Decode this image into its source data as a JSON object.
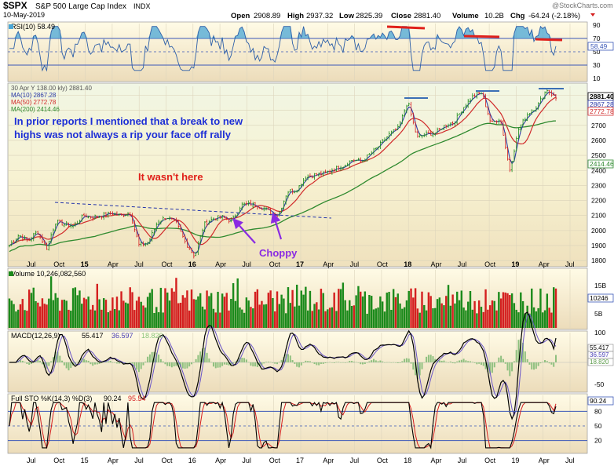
{
  "header": {
    "symbol": "$SPX",
    "name": "S&P 500 Large Cap Index",
    "exchange": "INDX",
    "date": "10-May-2019",
    "open_label": "Open",
    "open": "2908.89",
    "high_label": "High",
    "high": "2937.32",
    "low_label": "Low",
    "low": "2825.39",
    "close_label": "Close",
    "close": "2881.40",
    "volume_label": "Volume",
    "volume": "10.2B",
    "chg_label": "Chg",
    "chg": "-64.24 (-2.18%)",
    "watermark": "@StockCharts.com"
  },
  "colors": {
    "panel_bg_top": "#fffbe4",
    "panel_bg_bottom": "#eedfc0",
    "price_bg_top": "#f2f7e6",
    "up": "#1b8a1b",
    "down": "#d41f1f",
    "ma10": "#2b3aa8",
    "ma50": "#d12a2a",
    "ma200": "#2f8a2f",
    "annot_blue": "#1d2fd6",
    "annot_red": "#e0201a",
    "annot_purple": "#8a2be2",
    "rsi_fill": "#4aa6d6"
  },
  "chart_data": [
    {
      "type": "line",
      "panel": "rsi",
      "title": "RSI(10) 58.49",
      "last_value": "58.49",
      "ylim": [
        10,
        90
      ],
      "y_ticks": [
        "90",
        "70",
        "50",
        "30",
        "10"
      ],
      "reference_lines": [
        70,
        30
      ]
    },
    {
      "type": "candlestick",
      "panel": "price",
      "title": "30 Apr Y 138.00 kly) 2881.40",
      "ylim": [
        1780,
        2960
      ],
      "y_ticks": [
        "1800",
        "1900",
        "2000",
        "2100",
        "2200",
        "2300",
        "2400",
        "2500",
        "2600",
        "2700",
        "2800",
        "2900"
      ],
      "right_labels": [
        "2881.40",
        "2867.28",
        "2772.78",
        "2414.46"
      ],
      "series": [
        {
          "name": "MA(10) 2867.28",
          "last": 2867.28
        },
        {
          "name": "MA(50) 2772.78",
          "last": 2772.78
        },
        {
          "name": "MA(200) 2414.46",
          "last": 2414.46
        }
      ],
      "price_path": [
        [
          "2014-06",
          1900
        ],
        [
          "2014-07",
          1970
        ],
        [
          "2014-08",
          1930
        ],
        [
          "2014-09",
          1995
        ],
        [
          "2014-10",
          1880
        ],
        [
          "2014-11",
          2060
        ],
        [
          "2014-12",
          2040
        ],
        [
          "2015-01",
          2030
        ],
        [
          "2015-02",
          2100
        ],
        [
          "2015-03",
          2090
        ],
        [
          "2015-04",
          2100
        ],
        [
          "2015-05",
          2115
        ],
        [
          "2015-06",
          2100
        ],
        [
          "2015-07",
          2120
        ],
        [
          "2015-08",
          1900
        ],
        [
          "2015-09",
          1920
        ],
        [
          "2015-10",
          2060
        ],
        [
          "2015-11",
          2090
        ],
        [
          "2015-12",
          2050
        ],
        [
          "2016-01",
          1920
        ],
        [
          "2016-02",
          1830
        ],
        [
          "2016-03",
          2040
        ],
        [
          "2016-04",
          2080
        ],
        [
          "2016-05",
          2090
        ],
        [
          "2016-06",
          2060
        ],
        [
          "2016-07",
          2170
        ],
        [
          "2016-08",
          2175
        ],
        [
          "2016-09",
          2160
        ],
        [
          "2016-10",
          2130
        ],
        [
          "2016-11",
          2100
        ],
        [
          "2016-12",
          2260
        ],
        [
          "2017-01",
          2270
        ],
        [
          "2017-02",
          2360
        ],
        [
          "2017-03",
          2370
        ],
        [
          "2017-04",
          2380
        ],
        [
          "2017-05",
          2410
        ],
        [
          "2017-06",
          2430
        ],
        [
          "2017-07",
          2470
        ],
        [
          "2017-08",
          2460
        ],
        [
          "2017-09",
          2510
        ],
        [
          "2017-10",
          2570
        ],
        [
          "2017-11",
          2640
        ],
        [
          "2017-12",
          2680
        ],
        [
          "2018-01",
          2860
        ],
        [
          "2018-02",
          2620
        ],
        [
          "2018-03",
          2640
        ],
        [
          "2018-04",
          2650
        ],
        [
          "2018-05",
          2700
        ],
        [
          "2018-06",
          2720
        ],
        [
          "2018-07",
          2820
        ],
        [
          "2018-08",
          2890
        ],
        [
          "2018-09",
          2920
        ],
        [
          "2018-10",
          2710
        ],
        [
          "2018-11",
          2750
        ],
        [
          "2018-12",
          2400
        ],
        [
          "2019-01",
          2680
        ],
        [
          "2019-02",
          2780
        ],
        [
          "2019-03",
          2830
        ],
        [
          "2019-04",
          2940
        ],
        [
          "2019-05",
          2881
        ]
      ],
      "annotations": [
        "In prior reports I mentioned that a break to new highs was not always a rip your face off rally",
        "It wasn't here",
        "Choppy"
      ]
    },
    {
      "type": "bar",
      "panel": "volume",
      "title": "Volume 10,246,082,560",
      "last_value": "10246",
      "y_ticks": [
        "15B",
        "10B",
        "5B"
      ]
    },
    {
      "type": "line",
      "panel": "macd",
      "title_main": "MACD(12,26,9)",
      "macd_value": "55.417",
      "signal_value": "36.597",
      "hist_value": "18.820",
      "right_labels": [
        "55.417",
        "36.597",
        "18.820"
      ],
      "y_ticks": [
        "100",
        "50",
        "0",
        "-50"
      ]
    },
    {
      "type": "line",
      "panel": "stochastic",
      "title_main": "Full STO %K(14,3) %D(3)",
      "k_value": "90.24",
      "d_value": "95.54",
      "right_label": "90.24",
      "y_ticks": [
        "80",
        "50",
        "20"
      ]
    }
  ],
  "x_axis": {
    "labels": [
      "Jul",
      "Oct",
      "15",
      "Apr",
      "Jul",
      "Oct",
      "16",
      "Apr",
      "Jul",
      "Oct",
      "17",
      "Apr",
      "Jul",
      "Oct",
      "18",
      "Apr",
      "Jul",
      "Oct",
      "19",
      "Apr",
      "Jul"
    ]
  },
  "year_labels_price": [
    "15",
    "16",
    "17",
    "18",
    "19"
  ]
}
